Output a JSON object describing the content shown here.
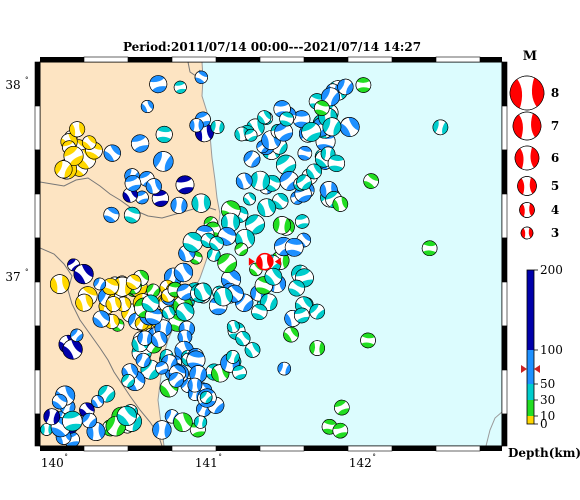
{
  "title": "Period:2011/07/14 00:00---2021/07/14 14:27",
  "map": {
    "lon_range": [
      139.92,
      142.92
    ],
    "lat_range": [
      36.12,
      38.12
    ],
    "lon_ticks": [
      {
        "value": 140,
        "label": "140"
      },
      {
        "value": 141,
        "label": "141"
      },
      {
        "value": 142,
        "label": "142"
      }
    ],
    "lat_ticks": [
      {
        "value": 38,
        "label": "38"
      },
      {
        "value": 37,
        "label": "37"
      }
    ],
    "degree_mark": "°",
    "colors": {
      "land": "#fde4c2",
      "sea": "#dcfcfe",
      "coast": "#9a9a9a",
      "prefecture": "#777777"
    }
  },
  "magnitude_legend": {
    "title": "M",
    "items": [
      "8",
      "7",
      "6",
      "5",
      "4",
      "3"
    ],
    "color": "#ff0000"
  },
  "depth_scale": {
    "label": "Depth(km)",
    "range": [
      0,
      200
    ],
    "ticks": [
      "0",
      "10",
      "30",
      "50",
      "100",
      "200"
    ],
    "bands": [
      {
        "from": 0,
        "to": 10,
        "color": "#ffd700"
      },
      {
        "from": 10,
        "to": 30,
        "color": "#22dd22"
      },
      {
        "from": 30,
        "to": 50,
        "color": "#00cccc"
      },
      {
        "from": 50,
        "to": 100,
        "color": "#1e90ff"
      },
      {
        "from": 100,
        "to": 200,
        "color": "#0000aa"
      }
    ],
    "marker_depth": 72,
    "marker_color": "#cc2222"
  },
  "highlight_event": {
    "lon": 141.38,
    "lat": 37.08,
    "color": "#ff0000"
  },
  "event_colors": {
    "shallow": "#ffd700",
    "crust": "#22dd22",
    "mid": "#00cccc",
    "intermediate": "#1e90ff",
    "deep": "#0000aa"
  }
}
